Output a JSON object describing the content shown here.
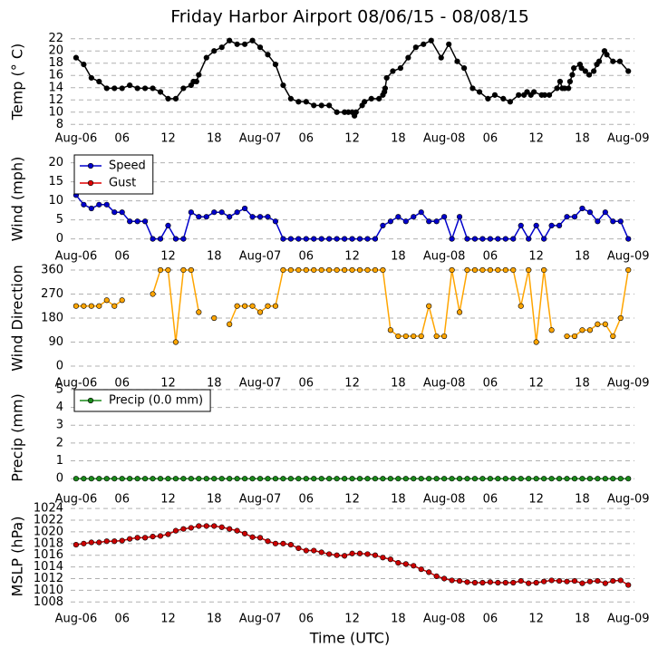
{
  "title": "Friday Harbor Airport 08/06/15 - 08/08/15",
  "xlabel": "Time (UTC)",
  "chart_data": [
    {
      "type": "line",
      "ylabel": "Temp (° C)",
      "xlim": [
        -0.7,
        72.8
      ],
      "ylim": [
        7.3,
        22.7
      ],
      "yticks": [
        8,
        10,
        12,
        14,
        16,
        18,
        20,
        22
      ],
      "grid": true,
      "xticks": [
        {
          "value": 0,
          "label": "Aug-06"
        },
        {
          "value": 6,
          "label": "06"
        },
        12,
        18,
        {
          "value": 24,
          "label": "Aug-07"
        },
        {
          "value": 30,
          "label": "06"
        },
        {
          "value": 36,
          "label": "12"
        },
        {
          "value": 42,
          "label": "18"
        },
        {
          "value": 48,
          "label": "Aug-08"
        },
        {
          "value": 54,
          "label": "06"
        },
        {
          "value": 60,
          "label": "12"
        },
        {
          "value": 66,
          "label": "18"
        },
        {
          "value": 72,
          "label": "Aug-09"
        }
      ],
      "x": [
        0,
        1,
        2,
        3,
        4,
        5,
        6,
        7,
        8,
        9,
        10,
        11,
        12,
        13,
        14,
        15,
        15.3,
        15.7,
        16,
        17,
        18,
        19,
        20,
        21,
        22,
        23,
        24,
        25,
        26,
        27,
        28,
        29,
        30,
        31,
        32,
        33,
        34,
        35,
        35.5,
        36,
        36.3,
        36.5,
        37.3,
        37.6,
        38.5,
        39.5,
        40,
        40.2,
        40.3,
        40.5,
        41.3,
        42.3,
        43.3,
        44.3,
        45.3,
        46.3,
        47.6,
        48.6,
        49.7,
        50.6,
        51.7,
        52.6,
        53.7,
        54.6,
        55.7,
        56.6,
        57.7,
        58.4,
        58.8,
        59.3,
        59.7,
        60.7,
        61.1,
        61.7,
        62.7,
        63.1,
        63.4,
        63.7,
        64.2,
        64.4,
        64.7,
        64.9,
        65.7,
        65.9,
        66.4,
        66.9,
        67.5,
        67.9,
        68.2,
        68.9,
        69.2,
        70,
        70.9,
        72
      ],
      "series": [
        {
          "color": "#000000",
          "values": [
            18.9,
            17.8,
            15.6,
            15,
            13.9,
            13.9,
            13.9,
            14.4,
            13.9,
            13.9,
            13.9,
            13.3,
            12.2,
            12.2,
            13.9,
            14.4,
            15,
            15,
            16.1,
            18.9,
            20,
            20.6,
            21.7,
            21.1,
            21.1,
            21.7,
            20.6,
            19.4,
            17.8,
            14.4,
            12.2,
            11.7,
            11.7,
            11.1,
            11.1,
            11.1,
            10,
            10,
            10,
            10,
            9.4,
            10,
            11.1,
            11.7,
            12.2,
            12.2,
            12.8,
            13.3,
            13.9,
            15.6,
            16.7,
            17.2,
            18.9,
            20.6,
            21.1,
            21.7,
            18.9,
            21.1,
            18.3,
            17.2,
            13.9,
            13.3,
            12.2,
            12.8,
            12.2,
            11.7,
            12.8,
            12.8,
            13.3,
            12.8,
            13.3,
            12.8,
            12.8,
            12.8,
            13.9,
            15,
            13.9,
            13.9,
            13.9,
            15,
            16.1,
            17.2,
            17.8,
            17.2,
            16.7,
            16.1,
            16.7,
            17.8,
            18.3,
            20,
            19.4,
            18.3,
            18.3,
            16.7
          ]
        }
      ]
    },
    {
      "type": "line",
      "ylabel": "Wind (mph)",
      "xlim": [
        -0.7,
        72.8
      ],
      "ylim": [
        -2,
        23
      ],
      "yticks": [
        0,
        5,
        10,
        15,
        20
      ],
      "grid": true,
      "legend": "upper left",
      "xticks": [
        {
          "value": 0,
          "label": "Aug-06"
        },
        {
          "value": 6,
          "label": "06"
        },
        12,
        18,
        {
          "value": 24,
          "label": "Aug-07"
        },
        {
          "value": 30,
          "label": "06"
        },
        {
          "value": 36,
          "label": "12"
        },
        {
          "value": 42,
          "label": "18"
        },
        {
          "value": 48,
          "label": "Aug-08"
        },
        {
          "value": 54,
          "label": "06"
        },
        {
          "value": 60,
          "label": "12"
        },
        {
          "value": 66,
          "label": "18"
        },
        {
          "value": 72,
          "label": "Aug-09"
        }
      ],
      "x": [
        0,
        1,
        2,
        3,
        4,
        5,
        6,
        7,
        8,
        9,
        10,
        11,
        12,
        13,
        14,
        15,
        16,
        17,
        18,
        19,
        20,
        21,
        22,
        23,
        24,
        25,
        26,
        27,
        28,
        29,
        30,
        31,
        32,
        33,
        34,
        35,
        36,
        37,
        38,
        39,
        40,
        41,
        42,
        43,
        44,
        45,
        46,
        47,
        48,
        49,
        50,
        51,
        52,
        53,
        54,
        55,
        56,
        57,
        58,
        59,
        60,
        61,
        62,
        63,
        64,
        65,
        66,
        67,
        68,
        69,
        70,
        71,
        72
      ],
      "series": [
        {
          "name": "Speed",
          "color": "#0000cc",
          "values": [
            11.5,
            9,
            8,
            9,
            9,
            7,
            7,
            4.6,
            4.6,
            4.6,
            0,
            0,
            3.5,
            0,
            0,
            7,
            5.8,
            5.8,
            7,
            7,
            5.8,
            7,
            8,
            5.8,
            5.8,
            5.8,
            4.6,
            0,
            0,
            0,
            0,
            0,
            0,
            0,
            0,
            0,
            0,
            0,
            0,
            0,
            3.5,
            4.6,
            5.8,
            4.6,
            5.8,
            7,
            4.6,
            4.6,
            5.8,
            0,
            5.8,
            0,
            0,
            0,
            0,
            0,
            0,
            0,
            3.5,
            0,
            3.5,
            0,
            3.5,
            3.5,
            5.8,
            5.8,
            8,
            7,
            4.6,
            7,
            4.6,
            4.6,
            0
          ]
        },
        {
          "name": "Gust",
          "color": "#dd0000",
          "values": [
            null,
            null,
            null,
            null,
            null,
            null,
            null,
            null,
            null,
            null,
            null,
            null,
            null,
            null,
            null,
            null,
            null,
            null,
            null,
            null,
            null,
            null,
            null,
            null,
            null,
            null,
            null,
            null,
            null,
            null,
            null,
            null,
            null,
            null,
            null,
            null,
            null,
            null,
            null,
            null,
            null,
            null,
            null,
            null,
            null,
            null,
            null,
            null,
            null,
            null,
            null,
            null,
            null,
            null,
            null,
            null,
            null,
            null,
            null,
            null,
            null,
            null,
            null,
            null,
            null,
            null,
            null,
            null,
            null,
            null,
            null,
            null,
            null
          ]
        }
      ]
    },
    {
      "type": "line",
      "ylabel": "Wind Direction",
      "xlim": [
        -0.7,
        72.8
      ],
      "ylim": [
        -27,
        387
      ],
      "yticks": [
        0,
        90,
        180,
        270,
        360
      ],
      "grid": true,
      "xticks": [
        {
          "value": 0,
          "label": "Aug-06"
        },
        {
          "value": 6,
          "label": "06"
        },
        12,
        18,
        {
          "value": 24,
          "label": "Aug-07"
        },
        {
          "value": 30,
          "label": "06"
        },
        {
          "value": 36,
          "label": "12"
        },
        {
          "value": 42,
          "label": "18"
        },
        {
          "value": 48,
          "label": "Aug-08"
        },
        {
          "value": 54,
          "label": "06"
        },
        {
          "value": 60,
          "label": "12"
        },
        {
          "value": 66,
          "label": "18"
        },
        {
          "value": 72,
          "label": "Aug-09"
        }
      ],
      "x": [
        0,
        1,
        2,
        3,
        4,
        5,
        6,
        7,
        8,
        9,
        10,
        11,
        12,
        13,
        14,
        15,
        16,
        17,
        18,
        19,
        20,
        21,
        22,
        23,
        24,
        25,
        26,
        27,
        28,
        29,
        30,
        31,
        32,
        33,
        34,
        35,
        36,
        37,
        38,
        39,
        40,
        41,
        42,
        43,
        44,
        45,
        46,
        47,
        48,
        49,
        50,
        51,
        52,
        53,
        54,
        55,
        56,
        57,
        58,
        59,
        60,
        61,
        62,
        63,
        64,
        65,
        66,
        67,
        68,
        69,
        70,
        71,
        72
      ],
      "series": [
        {
          "color": "#ffa500",
          "values": [
            225,
            225,
            225,
            225,
            247,
            225,
            247,
            null,
            null,
            null,
            270,
            360,
            360,
            90,
            360,
            360,
            202,
            null,
            180,
            null,
            157,
            225,
            225,
            225,
            202,
            225,
            225,
            360,
            360,
            360,
            360,
            360,
            360,
            360,
            360,
            360,
            360,
            360,
            360,
            360,
            360,
            135,
            112,
            112,
            112,
            112,
            225,
            112,
            112,
            360,
            202,
            360,
            360,
            360,
            360,
            360,
            360,
            360,
            225,
            360,
            90,
            360,
            135,
            null,
            112,
            112,
            135,
            135,
            157,
            157,
            112,
            180,
            360
          ]
        }
      ]
    },
    {
      "type": "line",
      "ylabel": "Precip (mm)",
      "xlim": [
        -0.7,
        72.8
      ],
      "ylim": [
        -0.6,
        5.2
      ],
      "yticks": [
        0,
        1,
        2,
        3,
        4,
        5
      ],
      "grid": true,
      "legend": "upper left",
      "xticks": [
        {
          "value": 0,
          "label": "Aug-06"
        },
        {
          "value": 6,
          "label": "06"
        },
        12,
        18,
        {
          "value": 24,
          "label": "Aug-07"
        },
        {
          "value": 30,
          "label": "06"
        },
        {
          "value": 36,
          "label": "12"
        },
        {
          "value": 42,
          "label": "18"
        },
        {
          "value": 48,
          "label": "Aug-08"
        },
        {
          "value": 54,
          "label": "06"
        },
        {
          "value": 60,
          "label": "12"
        },
        {
          "value": 66,
          "label": "18"
        },
        {
          "value": 72,
          "label": "Aug-09"
        }
      ],
      "x": [
        0,
        1,
        2,
        3,
        4,
        5,
        6,
        7,
        8,
        9,
        10,
        11,
        12,
        13,
        14,
        15,
        16,
        17,
        18,
        19,
        20,
        21,
        22,
        23,
        24,
        25,
        26,
        27,
        28,
        29,
        30,
        31,
        32,
        33,
        34,
        35,
        36,
        37,
        38,
        39,
        40,
        41,
        42,
        43,
        44,
        45,
        46,
        47,
        48,
        49,
        50,
        51,
        52,
        53,
        54,
        55,
        56,
        57,
        58,
        59,
        60,
        61,
        62,
        63,
        64,
        65,
        66,
        67,
        68,
        69,
        70,
        71,
        72
      ],
      "series": [
        {
          "name": "Precip (0.0 mm)",
          "color": "#1a8a1a",
          "values": [
            0,
            0,
            0,
            0,
            0,
            0,
            0,
            0,
            0,
            0,
            0,
            0,
            0,
            0,
            0,
            0,
            0,
            0,
            0,
            0,
            0,
            0,
            0,
            0,
            0,
            0,
            0,
            0,
            0,
            0,
            0,
            0,
            0,
            0,
            0,
            0,
            0,
            0,
            0,
            0,
            0,
            0,
            0,
            0,
            0,
            0,
            0,
            0,
            0,
            0,
            0,
            0,
            0,
            0,
            0,
            0,
            0,
            0,
            0,
            0,
            0,
            0,
            0,
            0,
            0,
            0,
            0,
            0,
            0,
            0,
            0,
            0,
            0
          ]
        }
      ]
    },
    {
      "type": "line",
      "ylabel": "MSLP (hPa)",
      "xlim": [
        -0.7,
        72.8
      ],
      "ylim": [
        1006.8,
        1024.8
      ],
      "yticks": [
        1008,
        1010,
        1012,
        1014,
        1016,
        1018,
        1020,
        1022,
        1024
      ],
      "grid": true,
      "xticks": [
        {
          "value": 0,
          "label": "Aug-06"
        },
        {
          "value": 6,
          "label": "06"
        },
        12,
        18,
        {
          "value": 24,
          "label": "Aug-07"
        },
        {
          "value": 30,
          "label": "06"
        },
        {
          "value": 36,
          "label": "12"
        },
        {
          "value": 42,
          "label": "18"
        },
        {
          "value": 48,
          "label": "Aug-08"
        },
        {
          "value": 54,
          "label": "06"
        },
        {
          "value": 60,
          "label": "12"
        },
        {
          "value": 66,
          "label": "18"
        },
        {
          "value": 72,
          "label": "Aug-09"
        }
      ],
      "x": [
        0,
        1,
        2,
        3,
        4,
        5,
        6,
        7,
        8,
        9,
        10,
        11,
        12,
        13,
        14,
        15,
        16,
        17,
        18,
        19,
        20,
        21,
        22,
        23,
        24,
        25,
        26,
        27,
        28,
        29,
        30,
        31,
        32,
        33,
        34,
        35,
        36,
        37,
        38,
        39,
        40,
        41,
        42,
        43,
        44,
        45,
        46,
        47,
        48,
        49,
        50,
        51,
        52,
        53,
        54,
        55,
        56,
        57,
        58,
        59,
        60,
        61,
        62,
        63,
        64,
        65,
        66,
        67,
        68,
        69,
        70,
        71,
        72
      ],
      "series": [
        {
          "color": "#cc0000",
          "values": [
            1017.8,
            1018,
            1018.2,
            1018.2,
            1018.4,
            1018.4,
            1018.5,
            1018.8,
            1019,
            1019,
            1019.2,
            1019.3,
            1019.6,
            1020.2,
            1020.5,
            1020.7,
            1021,
            1021,
            1021,
            1020.8,
            1020.5,
            1020.2,
            1019.7,
            1019.1,
            1019,
            1018.4,
            1018,
            1018,
            1017.8,
            1017.2,
            1016.8,
            1016.8,
            1016.5,
            1016.2,
            1016,
            1015.9,
            1016.3,
            1016.3,
            1016.2,
            1016,
            1015.6,
            1015.3,
            1014.7,
            1014.5,
            1014.2,
            1013.6,
            1013.1,
            1012.4,
            1012,
            1011.7,
            1011.6,
            1011.4,
            1011.3,
            1011.3,
            1011.4,
            1011.3,
            1011.3,
            1011.3,
            1011.6,
            1011.2,
            1011.3,
            1011.5,
            1011.7,
            1011.6,
            1011.5,
            1011.6,
            1011.2,
            1011.5,
            1011.6,
            1011.2,
            1011.6,
            1011.7,
            1010.9
          ]
        }
      ]
    }
  ]
}
